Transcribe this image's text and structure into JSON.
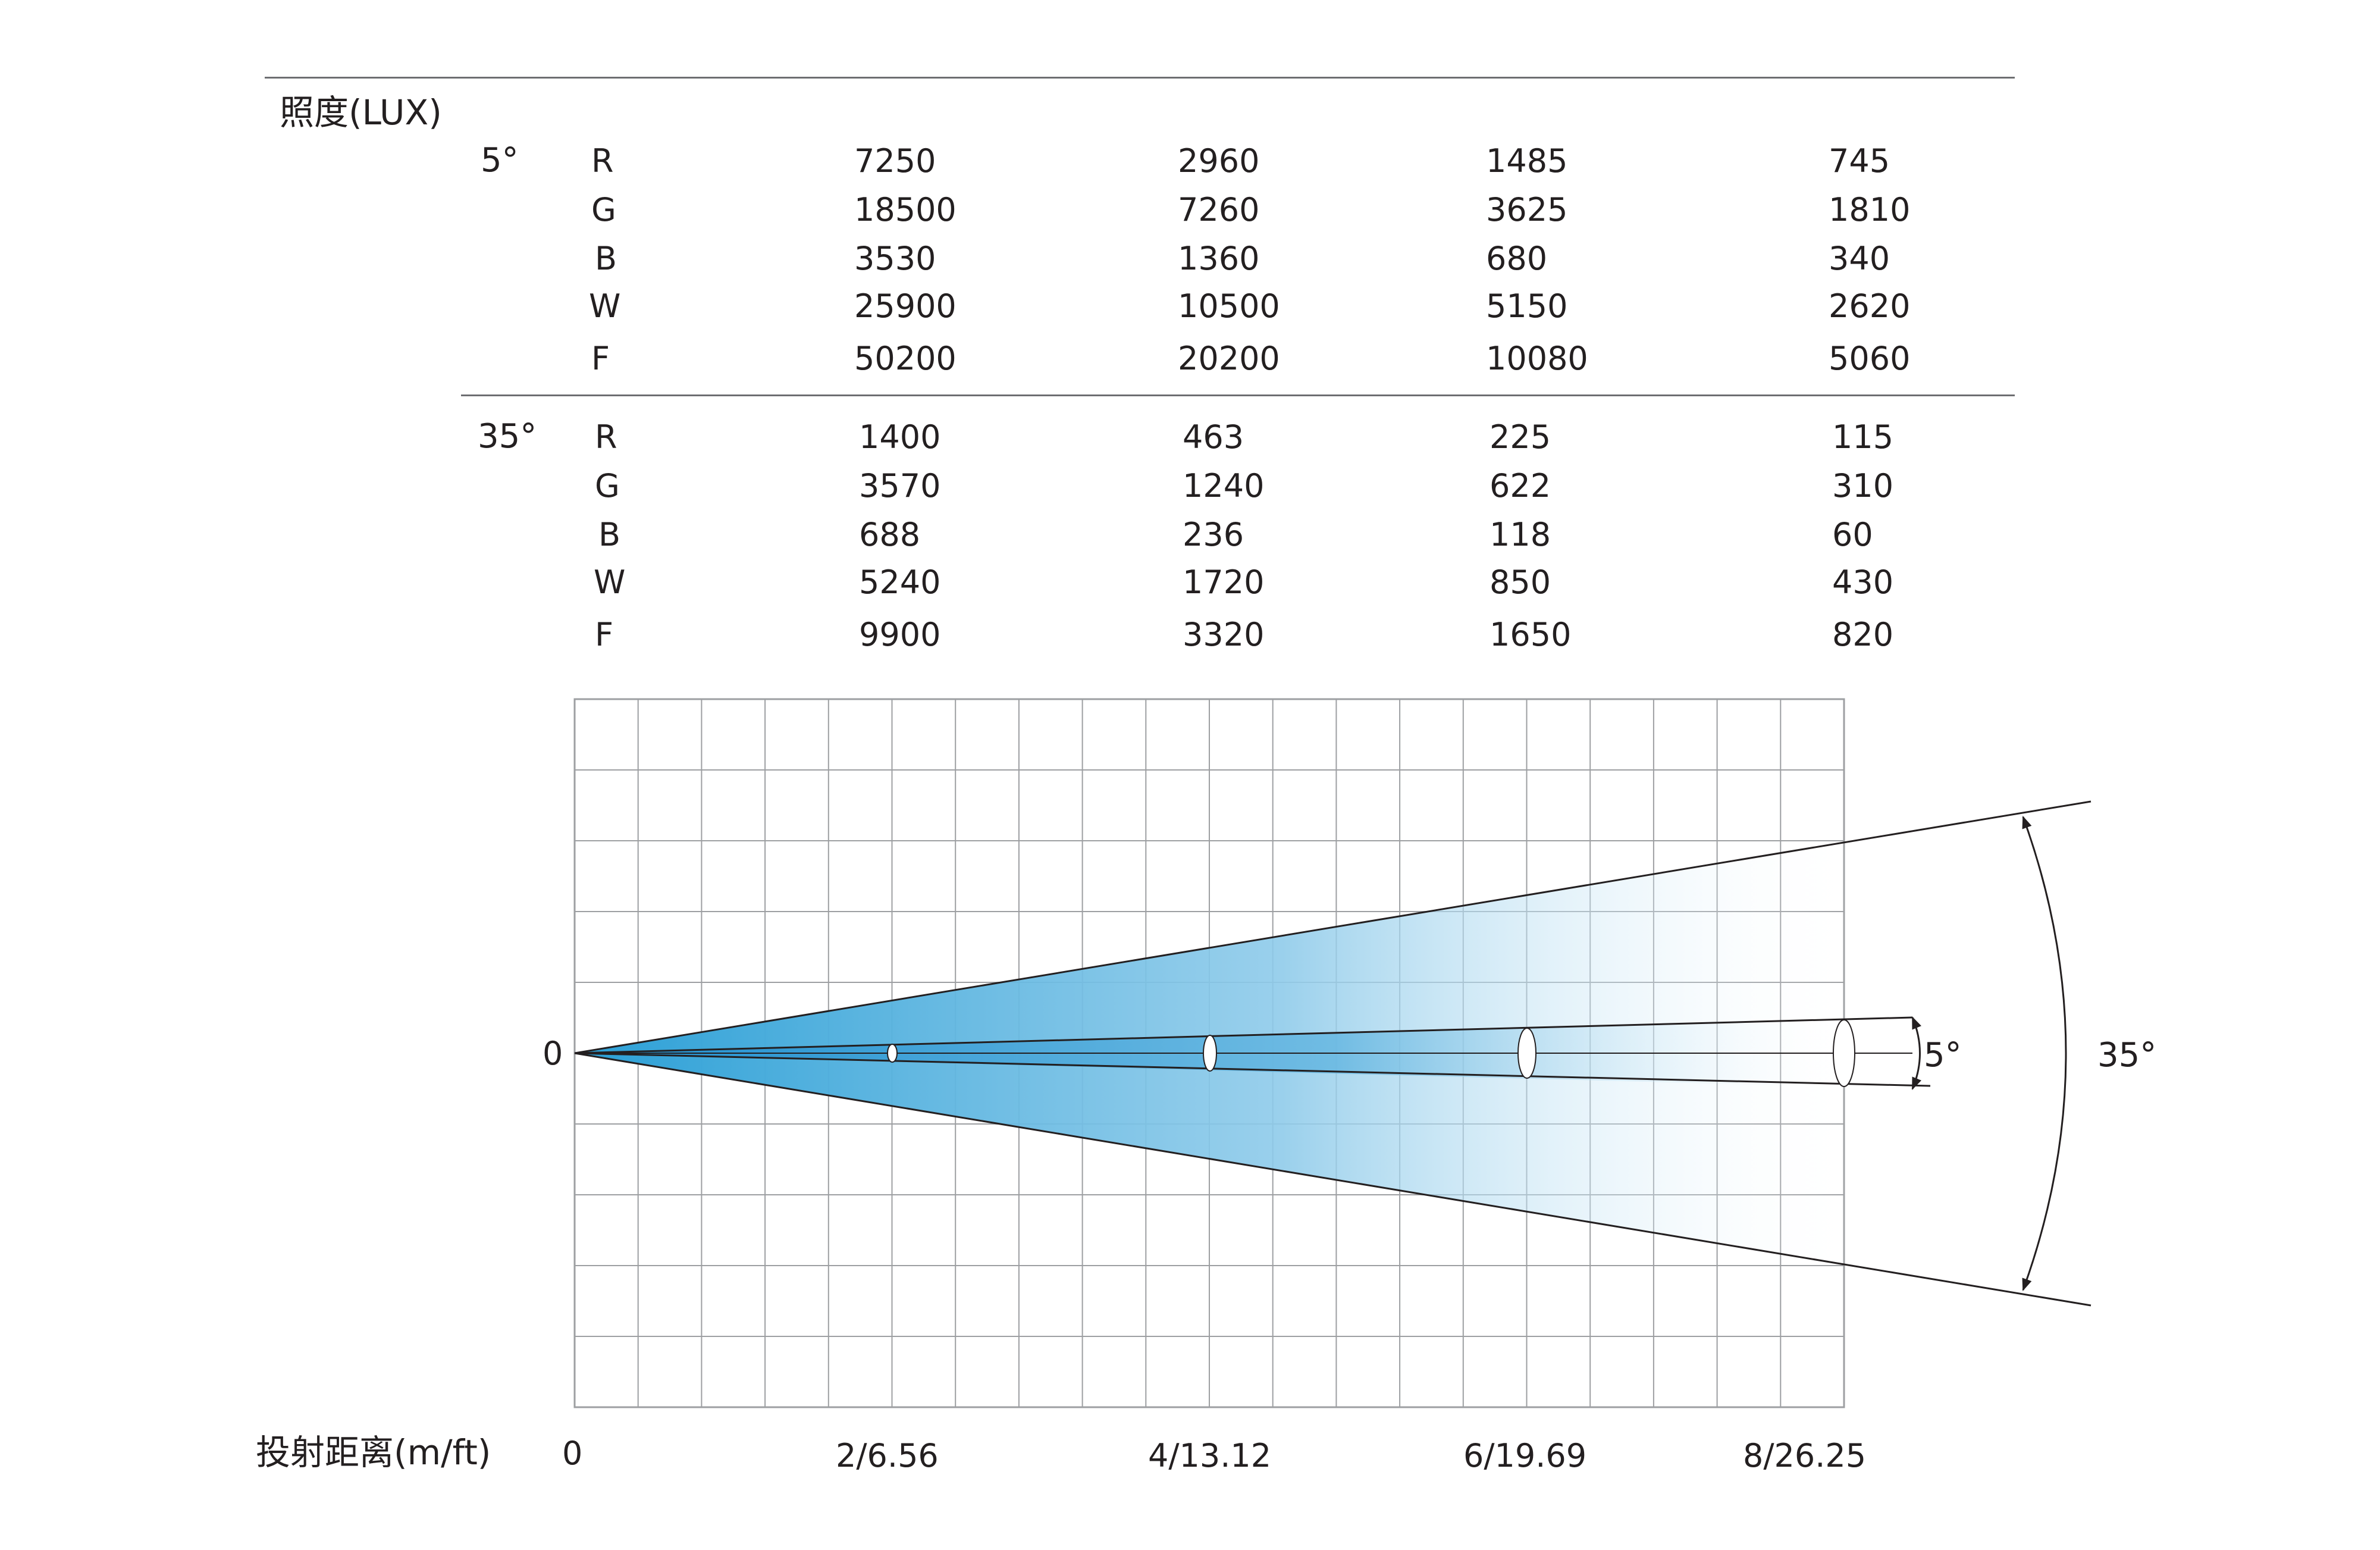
{
  "illuminance": {
    "title": "照度(LUX)",
    "groups": [
      {
        "angle": "5°",
        "rows": [
          {
            "channel": "R",
            "values": [
              "7250",
              "2960",
              "1485",
              "745"
            ]
          },
          {
            "channel": "G",
            "values": [
              "18500",
              "7260",
              "3625",
              "1810"
            ]
          },
          {
            "channel": "B",
            "values": [
              "3530",
              "1360",
              "680",
              "340"
            ]
          },
          {
            "channel": "W",
            "values": [
              "25900",
              "10500",
              "5150",
              "2620"
            ]
          },
          {
            "channel": "F",
            "values": [
              "50200",
              "20200",
              "10080",
              "5060"
            ]
          }
        ]
      },
      {
        "angle": "35°",
        "rows": [
          {
            "channel": "R",
            "values": [
              "1400",
              "463",
              "225",
              "115"
            ]
          },
          {
            "channel": "G",
            "values": [
              "3570",
              "1240",
              "622",
              "310"
            ]
          },
          {
            "channel": "B",
            "values": [
              "688",
              "236",
              "118",
              "60"
            ]
          },
          {
            "channel": "W",
            "values": [
              "5240",
              "1720",
              "850",
              "430"
            ]
          },
          {
            "channel": "F",
            "values": [
              "9900",
              "3320",
              "1650",
              "820"
            ]
          }
        ]
      }
    ]
  },
  "diagram": {
    "origin_label": "0",
    "narrow_angle_label": "5°",
    "wide_angle_label": "35°",
    "narrow_angle_deg": 5,
    "wide_angle_deg": 35,
    "max_distance_m": 8,
    "beam_colors": {
      "near": "#2a9fd6",
      "far": "#ffffff"
    },
    "line_color": "#231f20",
    "grid_color": "#9d9fa2"
  },
  "distance_axis": {
    "label": "投射距离(m/ft)",
    "ticks": [
      "0",
      "2/6.56",
      "4/13.12",
      "6/19.69",
      "8/26.25"
    ]
  }
}
